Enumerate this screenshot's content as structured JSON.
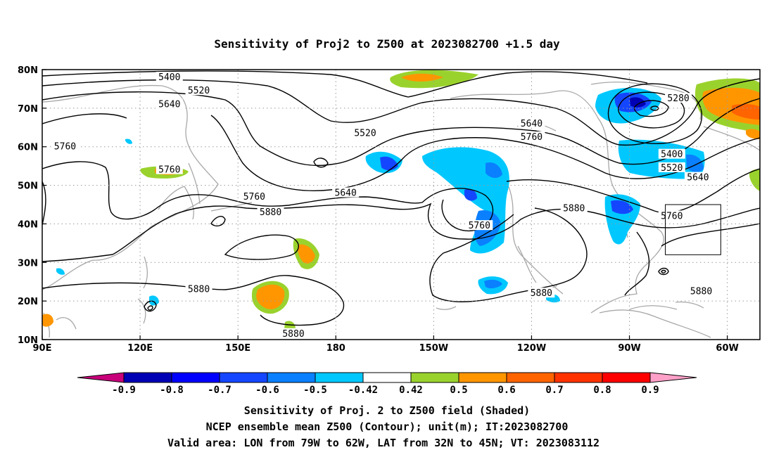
{
  "title": "Sensitivity of Proj2 to Z500 at 2023082700 +1.5 day",
  "map": {
    "lon_labels": [
      "90E",
      "120E",
      "150E",
      "180",
      "150W",
      "120W",
      "90W",
      "60W"
    ],
    "lat_labels": [
      "80N",
      "70N",
      "60N",
      "50N",
      "40N",
      "30N",
      "20N",
      "10N"
    ],
    "lon_range": [
      90,
      310
    ],
    "lat_range": [
      10,
      80
    ],
    "gridlines": true,
    "valid_box": {
      "lon_range": [
        281,
        298
      ],
      "lat_range": [
        32,
        45
      ]
    }
  },
  "contour_labels": [
    {
      "text": "5400",
      "lon": 129,
      "lat": 78
    },
    {
      "text": "5520",
      "lon": 138,
      "lat": 74.5
    },
    {
      "text": "5640",
      "lon": 129,
      "lat": 71
    },
    {
      "text": "5760",
      "lon": 97,
      "lat": 60
    },
    {
      "text": "5760",
      "lon": 129,
      "lat": 54
    },
    {
      "text": "5520",
      "lon": 189,
      "lat": 63.5
    },
    {
      "text": "5640",
      "lon": 240,
      "lat": 66
    },
    {
      "text": "5760",
      "lon": 240,
      "lat": 62.5
    },
    {
      "text": "5280",
      "lon": 285,
      "lat": 72.5
    },
    {
      "text": "5400",
      "lon": 283,
      "lat": 58
    },
    {
      "text": "5520",
      "lon": 283,
      "lat": 54.5
    },
    {
      "text": "5640",
      "lon": 291,
      "lat": 52
    },
    {
      "text": "5760",
      "lon": 283,
      "lat": 42
    },
    {
      "text": "5640",
      "lon": 183,
      "lat": 48
    },
    {
      "text": "5760",
      "lon": 155,
      "lat": 47
    },
    {
      "text": "5880",
      "lon": 160,
      "lat": 43
    },
    {
      "text": "5760",
      "lon": 224,
      "lat": 39.5
    },
    {
      "text": "5880",
      "lon": 253,
      "lat": 44
    },
    {
      "text": "5880",
      "lon": 138,
      "lat": 23
    },
    {
      "text": "5880",
      "lon": 243,
      "lat": 22
    },
    {
      "text": "5880",
      "lon": 167,
      "lat": 11.5
    },
    {
      "text": "5880",
      "lon": 292,
      "lat": 22.5
    }
  ],
  "colorbar": {
    "labels": [
      "-0.9",
      "-0.8",
      "-0.7",
      "-0.6",
      "-0.5",
      "-0.42",
      "0.42",
      "0.5",
      "0.6",
      "0.7",
      "0.8",
      "0.9"
    ],
    "colors": [
      "#c8007a",
      "#0000b4",
      "#0000ff",
      "#1446ff",
      "#0a80ff",
      "#00c8ff",
      "#ffffff",
      "#9ad22d",
      "#ff9600",
      "#ff6400",
      "#ff3200",
      "#ff0000",
      "#ffa0c8"
    ]
  },
  "footer": {
    "line1": "Sensitivity of Proj. 2 to Z500 field (Shaded)",
    "line2": "NCEP ensemble mean Z500 (Contour); unit(m); IT:2023082700",
    "line3": "Valid area: LON from 79W to 62W, LAT from 32N to 45N; VT: 2023083112"
  }
}
